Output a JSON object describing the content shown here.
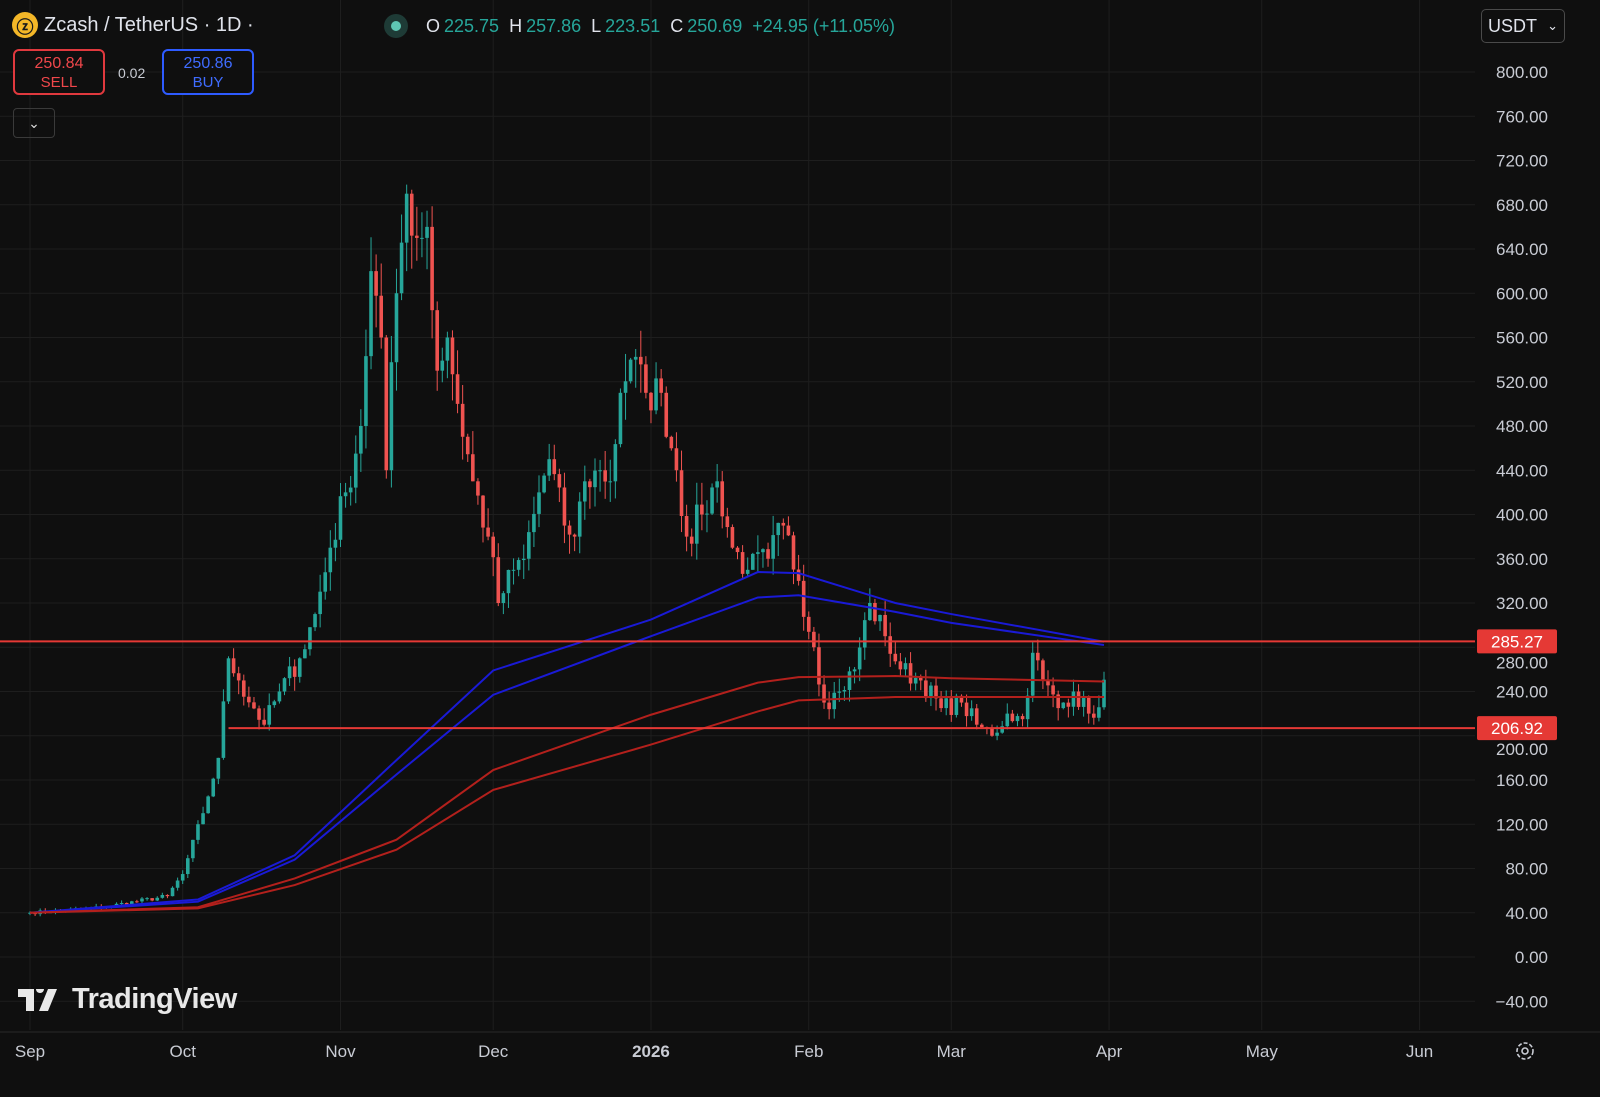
{
  "header": {
    "symbol_icon": "zcash-coin-icon",
    "title": "Zcash / TetherUS · 1D ·",
    "ohlc": {
      "o_label": "O",
      "o": "225.75",
      "h_label": "H",
      "h": "257.86",
      "l_label": "L",
      "l": "223.51",
      "c_label": "C",
      "c": "250.69",
      "change": "+24.95 (+11.05%)"
    },
    "sell": {
      "price": "250.84",
      "label": "SELL"
    },
    "buy": {
      "price": "250.86",
      "label": "BUY"
    },
    "spread": "0.02",
    "currency": "USDT",
    "logo": "TradingView"
  },
  "colors": {
    "background": "#0f0f0f",
    "up": "#26a69a",
    "down": "#ef5350",
    "ma_blue": "#1a1ad6",
    "ma_red": "#b3201c",
    "hline": "#e53935",
    "grid": "#1e1e1e"
  },
  "chart_data": {
    "type": "candlestick",
    "title": "Zcash / TetherUS · 1D",
    "ylim": [
      -40,
      800
    ],
    "y_ticks": [
      "800.00",
      "760.00",
      "720.00",
      "680.00",
      "640.00",
      "600.00",
      "560.00",
      "520.00",
      "480.00",
      "440.00",
      "400.00",
      "360.00",
      "320.00",
      "280.00",
      "240.00",
      "200.00",
      "160.00",
      "120.00",
      "80.00",
      "40.00",
      "0.00",
      "−40.00"
    ],
    "y_tick_values": [
      800,
      760,
      720,
      680,
      640,
      600,
      560,
      520,
      480,
      440,
      400,
      360,
      320,
      280,
      240,
      200,
      160,
      120,
      80,
      40,
      0,
      -40
    ],
    "x_ticks": [
      {
        "label": "Sep",
        "date": "2025-09-01",
        "bold": false
      },
      {
        "label": "Oct",
        "date": "2025-10-01",
        "bold": false
      },
      {
        "label": "Nov",
        "date": "2025-11-01",
        "bold": false
      },
      {
        "label": "Dec",
        "date": "2025-12-01",
        "bold": false
      },
      {
        "label": "2026",
        "date": "2026-01-01",
        "bold": true
      },
      {
        "label": "Feb",
        "date": "2026-02-01",
        "bold": false
      },
      {
        "label": "Mar",
        "date": "2026-03-01",
        "bold": false
      },
      {
        "label": "Apr",
        "date": "2026-04-01",
        "bold": false
      },
      {
        "label": "May",
        "date": "2026-05-01",
        "bold": false
      },
      {
        "label": "Jun",
        "date": "2026-06-01",
        "bold": false
      }
    ],
    "last_candle": {
      "date": "2026-03-31",
      "open": 225.75,
      "high": 257.86,
      "low": 223.51,
      "close": 250.69
    },
    "close_keypoints": [
      [
        "2025-09-01",
        40
      ],
      [
        "2025-09-15",
        45
      ],
      [
        "2025-09-28",
        55
      ],
      [
        "2025-10-01",
        75
      ],
      [
        "2025-10-05",
        130
      ],
      [
        "2025-10-08",
        180
      ],
      [
        "2025-10-10",
        270
      ],
      [
        "2025-10-12",
        250
      ],
      [
        "2025-10-17",
        210
      ],
      [
        "2025-10-20",
        240
      ],
      [
        "2025-10-24",
        270
      ],
      [
        "2025-10-27",
        310
      ],
      [
        "2025-10-30",
        370
      ],
      [
        "2025-11-02",
        420
      ],
      [
        "2025-11-05",
        480
      ],
      [
        "2025-11-07",
        620
      ],
      [
        "2025-11-09",
        560
      ],
      [
        "2025-11-10",
        440
      ],
      [
        "2025-11-12",
        600
      ],
      [
        "2025-11-14",
        690
      ],
      [
        "2025-11-16",
        650
      ],
      [
        "2025-11-18",
        660
      ],
      [
        "2025-11-20",
        530
      ],
      [
        "2025-11-22",
        560
      ],
      [
        "2025-11-24",
        500
      ],
      [
        "2025-11-27",
        430
      ],
      [
        "2025-11-30",
        380
      ],
      [
        "2025-12-02",
        320
      ],
      [
        "2025-12-05",
        350
      ],
      [
        "2025-12-07",
        360
      ],
      [
        "2025-12-10",
        420
      ],
      [
        "2025-12-12",
        450
      ],
      [
        "2025-12-15",
        390
      ],
      [
        "2025-12-17",
        380
      ],
      [
        "2025-12-19",
        430
      ],
      [
        "2025-12-22",
        440
      ],
      [
        "2025-12-24",
        430
      ],
      [
        "2025-12-26",
        510
      ],
      [
        "2025-12-28",
        540
      ],
      [
        "2025-12-31",
        510
      ],
      [
        "2026-01-03",
        510
      ],
      [
        "2026-01-06",
        440
      ],
      [
        "2026-01-08",
        380
      ],
      [
        "2026-01-11",
        400
      ],
      [
        "2026-01-14",
        430
      ],
      [
        "2026-01-17",
        370
      ],
      [
        "2026-01-20",
        350
      ],
      [
        "2026-01-24",
        360
      ],
      [
        "2026-01-27",
        390
      ],
      [
        "2026-01-30",
        340
      ],
      [
        "2026-02-02",
        280
      ],
      [
        "2026-02-04",
        230
      ],
      [
        "2026-02-07",
        240
      ],
      [
        "2026-02-10",
        260
      ],
      [
        "2026-02-13",
        320
      ],
      [
        "2026-02-16",
        290
      ],
      [
        "2026-02-19",
        260
      ],
      [
        "2026-02-23",
        250
      ],
      [
        "2026-02-27",
        225
      ],
      [
        "2026-03-03",
        230
      ],
      [
        "2026-03-06",
        210
      ],
      [
        "2026-03-09",
        200
      ],
      [
        "2026-03-12",
        220
      ],
      [
        "2026-03-15",
        215
      ],
      [
        "2026-03-17",
        275
      ],
      [
        "2026-03-19",
        250
      ],
      [
        "2026-03-22",
        225
      ],
      [
        "2026-03-25",
        240
      ],
      [
        "2026-03-28",
        220
      ],
      [
        "2026-03-30",
        225.75
      ],
      [
        "2026-03-31",
        250.69
      ]
    ],
    "moving_averages": [
      {
        "color": "#1a1ad6",
        "points": [
          [
            "2025-09-01",
            40
          ],
          [
            "2025-10-04",
            52
          ],
          [
            "2025-10-23",
            92
          ],
          [
            "2025-11-12",
            178
          ],
          [
            "2025-12-01",
            259
          ],
          [
            "2026-01-01",
            305
          ],
          [
            "2026-01-22",
            348
          ],
          [
            "2026-01-30",
            347
          ],
          [
            "2026-02-18",
            320
          ],
          [
            "2026-03-01",
            310
          ],
          [
            "2026-03-31",
            285
          ]
        ]
      },
      {
        "color": "#1a1ad6",
        "points": [
          [
            "2025-09-01",
            40
          ],
          [
            "2025-10-04",
            50
          ],
          [
            "2025-10-23",
            88
          ],
          [
            "2025-11-12",
            165
          ],
          [
            "2025-12-01",
            237
          ],
          [
            "2026-01-01",
            290
          ],
          [
            "2026-01-22",
            325
          ],
          [
            "2026-01-30",
            327
          ],
          [
            "2026-02-18",
            312
          ],
          [
            "2026-03-01",
            302
          ],
          [
            "2026-03-31",
            282
          ]
        ]
      },
      {
        "color": "#b3201c",
        "points": [
          [
            "2025-09-01",
            40
          ],
          [
            "2025-10-04",
            45
          ],
          [
            "2025-10-23",
            71
          ],
          [
            "2025-11-12",
            106
          ],
          [
            "2025-12-01",
            169
          ],
          [
            "2026-01-01",
            219
          ],
          [
            "2026-01-22",
            248
          ],
          [
            "2026-01-30",
            253
          ],
          [
            "2026-02-18",
            254
          ],
          [
            "2026-03-01",
            252
          ],
          [
            "2026-03-31",
            249
          ]
        ]
      },
      {
        "color": "#b3201c",
        "points": [
          [
            "2025-09-01",
            40
          ],
          [
            "2025-10-04",
            44
          ],
          [
            "2025-10-23",
            65
          ],
          [
            "2025-11-12",
            97
          ],
          [
            "2025-12-01",
            151
          ],
          [
            "2026-01-01",
            192
          ],
          [
            "2026-01-22",
            222
          ],
          [
            "2026-01-30",
            232
          ],
          [
            "2026-02-18",
            235
          ],
          [
            "2026-03-01",
            235
          ],
          [
            "2026-03-31",
            235
          ]
        ]
      }
    ],
    "horizontal_lines": [
      {
        "value": 285.27,
        "label": "285.27",
        "from": "2025-08-20"
      },
      {
        "value": 206.92,
        "label": "206.92",
        "from": "2025-10-10"
      }
    ]
  }
}
